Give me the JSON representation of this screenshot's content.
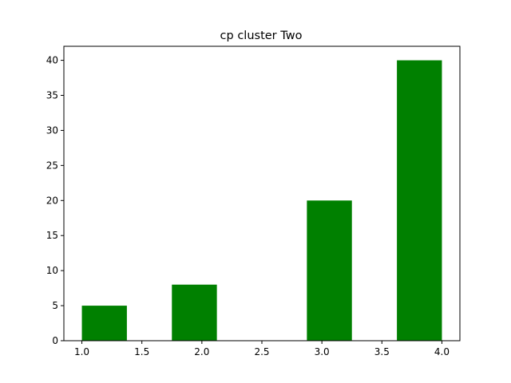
{
  "chart_data": {
    "type": "bar",
    "title": "cp cluster Two",
    "xlabel": "",
    "ylabel": "",
    "bin_width": 0.375,
    "bars": [
      {
        "x_start": 1.0,
        "value": 5
      },
      {
        "x_start": 1.75,
        "value": 8
      },
      {
        "x_start": 2.875,
        "value": 20
      },
      {
        "x_start": 3.625,
        "value": 40
      }
    ],
    "xlim": [
      0.85,
      4.15
    ],
    "ylim": [
      0,
      42
    ],
    "x_ticks": [
      1.0,
      1.5,
      2.0,
      2.5,
      3.0,
      3.5,
      4.0
    ],
    "x_tick_labels": [
      "1.0",
      "1.5",
      "2.0",
      "2.5",
      "3.0",
      "3.5",
      "4.0"
    ],
    "y_ticks": [
      0,
      5,
      10,
      15,
      20,
      25,
      30,
      35,
      40
    ],
    "y_tick_labels": [
      "0",
      "5",
      "10",
      "15",
      "20",
      "25",
      "30",
      "35",
      "40"
    ],
    "bar_color": "#008000",
    "grid": false,
    "legend": "none"
  }
}
